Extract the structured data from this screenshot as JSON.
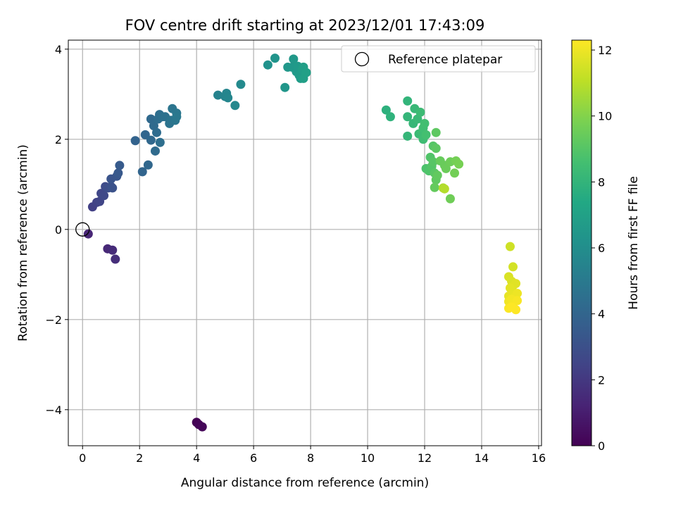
{
  "chart_data": {
    "type": "scatter",
    "title": "FOV centre drift starting at 2023/12/01 17:43:09",
    "xlabel": "Angular distance from reference (arcmin)",
    "ylabel": "Rotation from reference (arcmin)",
    "xlim": [
      -0.5,
      16.1
    ],
    "ylim": [
      -4.8,
      4.2
    ],
    "xticks": [
      0,
      2,
      4,
      6,
      8,
      10,
      12,
      14,
      16
    ],
    "yticks": [
      -4,
      -2,
      0,
      2,
      4
    ],
    "xtick_labels": [
      "0",
      "2",
      "4",
      "6",
      "8",
      "10",
      "12",
      "14",
      "16"
    ],
    "ytick_labels": [
      "−4",
      "−2",
      "0",
      "2",
      "4"
    ],
    "grid": true,
    "colormap": "viridis",
    "colorbar": {
      "label": "Hours from first FF file",
      "range": [
        0,
        12.3
      ],
      "ticks": [
        0,
        2,
        4,
        6,
        8,
        10,
        12
      ],
      "tick_labels": [
        "0",
        "2",
        "4",
        "6",
        "8",
        "10",
        "12"
      ]
    },
    "legend": {
      "label": "Reference platepar",
      "placement": "upper-right"
    },
    "reference_point": {
      "x": 0,
      "y": 0
    },
    "points": [
      {
        "x": 4.0,
        "y": -4.28,
        "c": 0.0
      },
      {
        "x": 4.08,
        "y": -4.33,
        "c": 0.1
      },
      {
        "x": 4.2,
        "y": -4.38,
        "c": 0.2
      },
      {
        "x": 0.2,
        "y": -0.1,
        "c": 1.3
      },
      {
        "x": 0.88,
        "y": -0.43,
        "c": 1.4
      },
      {
        "x": 1.05,
        "y": -0.46,
        "c": 1.5
      },
      {
        "x": 1.15,
        "y": -0.66,
        "c": 1.6
      },
      {
        "x": 0.35,
        "y": 0.5,
        "c": 2.3
      },
      {
        "x": 0.5,
        "y": 0.6,
        "c": 2.4
      },
      {
        "x": 0.6,
        "y": 0.62,
        "c": 2.5
      },
      {
        "x": 0.65,
        "y": 0.8,
        "c": 2.6
      },
      {
        "x": 0.75,
        "y": 0.75,
        "c": 2.7
      },
      {
        "x": 0.8,
        "y": 0.95,
        "c": 2.8
      },
      {
        "x": 0.9,
        "y": 0.92,
        "c": 2.9
      },
      {
        "x": 1.0,
        "y": 0.95,
        "c": 3.0
      },
      {
        "x": 1.05,
        "y": 0.92,
        "c": 3.1
      },
      {
        "x": 1.0,
        "y": 1.12,
        "c": 3.2
      },
      {
        "x": 1.2,
        "y": 1.18,
        "c": 3.3
      },
      {
        "x": 1.25,
        "y": 1.25,
        "c": 3.4
      },
      {
        "x": 1.3,
        "y": 1.42,
        "c": 3.5
      },
      {
        "x": 1.85,
        "y": 1.97,
        "c": 3.9
      },
      {
        "x": 2.1,
        "y": 1.28,
        "c": 4.0
      },
      {
        "x": 2.2,
        "y": 2.1,
        "c": 4.05
      },
      {
        "x": 2.3,
        "y": 1.43,
        "c": 4.1
      },
      {
        "x": 2.4,
        "y": 1.98,
        "c": 4.15
      },
      {
        "x": 2.4,
        "y": 2.45,
        "c": 4.2
      },
      {
        "x": 2.5,
        "y": 2.3,
        "c": 4.25
      },
      {
        "x": 2.55,
        "y": 1.74,
        "c": 4.3
      },
      {
        "x": 2.6,
        "y": 2.15,
        "c": 4.35
      },
      {
        "x": 2.65,
        "y": 2.45,
        "c": 4.4
      },
      {
        "x": 2.7,
        "y": 2.55,
        "c": 4.45
      },
      {
        "x": 2.72,
        "y": 1.93,
        "c": 4.5
      },
      {
        "x": 2.8,
        "y": 2.5,
        "c": 4.55
      },
      {
        "x": 2.9,
        "y": 2.5,
        "c": 4.6
      },
      {
        "x": 3.05,
        "y": 2.35,
        "c": 4.65
      },
      {
        "x": 3.1,
        "y": 2.42,
        "c": 4.7
      },
      {
        "x": 3.15,
        "y": 2.68,
        "c": 4.75
      },
      {
        "x": 3.25,
        "y": 2.42,
        "c": 4.8
      },
      {
        "x": 3.3,
        "y": 2.58,
        "c": 4.85
      },
      {
        "x": 3.3,
        "y": 2.5,
        "c": 4.9
      },
      {
        "x": 4.75,
        "y": 2.98,
        "c": 5.4
      },
      {
        "x": 5.0,
        "y": 2.95,
        "c": 5.5
      },
      {
        "x": 5.05,
        "y": 3.02,
        "c": 5.55
      },
      {
        "x": 5.1,
        "y": 2.92,
        "c": 5.6
      },
      {
        "x": 5.35,
        "y": 2.75,
        "c": 5.7
      },
      {
        "x": 5.55,
        "y": 3.22,
        "c": 5.8
      },
      {
        "x": 6.5,
        "y": 3.65,
        "c": 6.2
      },
      {
        "x": 6.75,
        "y": 3.8,
        "c": 6.3
      },
      {
        "x": 7.1,
        "y": 3.15,
        "c": 6.4
      },
      {
        "x": 7.2,
        "y": 3.6,
        "c": 6.45
      },
      {
        "x": 7.35,
        "y": 3.6,
        "c": 6.5
      },
      {
        "x": 7.4,
        "y": 3.78,
        "c": 6.55
      },
      {
        "x": 7.5,
        "y": 3.5,
        "c": 6.6
      },
      {
        "x": 7.55,
        "y": 3.62,
        "c": 6.65
      },
      {
        "x": 7.6,
        "y": 3.42,
        "c": 6.7
      },
      {
        "x": 7.65,
        "y": 3.35,
        "c": 6.75
      },
      {
        "x": 7.7,
        "y": 3.55,
        "c": 6.8
      },
      {
        "x": 7.75,
        "y": 3.6,
        "c": 6.85
      },
      {
        "x": 7.75,
        "y": 3.35,
        "c": 6.9
      },
      {
        "x": 7.85,
        "y": 3.48,
        "c": 6.95
      },
      {
        "x": 10.65,
        "y": 2.65,
        "c": 7.8
      },
      {
        "x": 10.8,
        "y": 2.5,
        "c": 7.9
      },
      {
        "x": 11.4,
        "y": 2.85,
        "c": 8.0
      },
      {
        "x": 11.4,
        "y": 2.5,
        "c": 8.05
      },
      {
        "x": 11.4,
        "y": 2.07,
        "c": 8.1
      },
      {
        "x": 11.6,
        "y": 2.35,
        "c": 8.15
      },
      {
        "x": 11.65,
        "y": 2.68,
        "c": 8.2
      },
      {
        "x": 11.75,
        "y": 2.45,
        "c": 8.25
      },
      {
        "x": 11.8,
        "y": 2.12,
        "c": 8.3
      },
      {
        "x": 11.85,
        "y": 2.6,
        "c": 8.35
      },
      {
        "x": 11.9,
        "y": 2.15,
        "c": 8.4
      },
      {
        "x": 11.95,
        "y": 2.0,
        "c": 8.45
      },
      {
        "x": 11.95,
        "y": 2.25,
        "c": 8.5
      },
      {
        "x": 12.0,
        "y": 2.35,
        "c": 8.55
      },
      {
        "x": 12.05,
        "y": 2.1,
        "c": 8.6
      },
      {
        "x": 12.05,
        "y": 1.35,
        "c": 8.8
      },
      {
        "x": 12.15,
        "y": 1.3,
        "c": 8.85
      },
      {
        "x": 12.2,
        "y": 1.6,
        "c": 8.9
      },
      {
        "x": 12.25,
        "y": 1.4,
        "c": 8.95
      },
      {
        "x": 12.3,
        "y": 1.85,
        "c": 9.0
      },
      {
        "x": 12.3,
        "y": 1.5,
        "c": 9.05
      },
      {
        "x": 12.35,
        "y": 1.25,
        "c": 9.1
      },
      {
        "x": 12.4,
        "y": 1.8,
        "c": 9.15
      },
      {
        "x": 12.4,
        "y": 2.15,
        "c": 9.2
      },
      {
        "x": 12.4,
        "y": 1.1,
        "c": 9.25
      },
      {
        "x": 12.45,
        "y": 1.2,
        "c": 9.3
      },
      {
        "x": 12.35,
        "y": 0.93,
        "c": 9.35
      },
      {
        "x": 12.55,
        "y": 1.52,
        "c": 9.4
      },
      {
        "x": 12.7,
        "y": 1.42,
        "c": 9.45
      },
      {
        "x": 12.75,
        "y": 1.35,
        "c": 9.5
      },
      {
        "x": 12.9,
        "y": 1.5,
        "c": 9.55
      },
      {
        "x": 12.9,
        "y": 0.68,
        "c": 9.6
      },
      {
        "x": 13.05,
        "y": 1.25,
        "c": 9.65
      },
      {
        "x": 13.1,
        "y": 1.52,
        "c": 9.7
      },
      {
        "x": 13.2,
        "y": 1.45,
        "c": 9.75
      },
      {
        "x": 12.65,
        "y": 0.92,
        "c": 10.8
      },
      {
        "x": 12.7,
        "y": 0.9,
        "c": 10.9
      },
      {
        "x": 15.0,
        "y": -0.38,
        "c": 11.4
      },
      {
        "x": 15.1,
        "y": -0.83,
        "c": 11.5
      },
      {
        "x": 14.95,
        "y": -1.05,
        "c": 11.6
      },
      {
        "x": 15.05,
        "y": -1.15,
        "c": 11.65
      },
      {
        "x": 15.1,
        "y": -1.25,
        "c": 11.7
      },
      {
        "x": 15.2,
        "y": -1.2,
        "c": 11.75
      },
      {
        "x": 15.0,
        "y": -1.3,
        "c": 11.8
      },
      {
        "x": 14.95,
        "y": -1.48,
        "c": 11.85
      },
      {
        "x": 15.05,
        "y": -1.45,
        "c": 11.9
      },
      {
        "x": 15.15,
        "y": -1.5,
        "c": 11.95
      },
      {
        "x": 15.25,
        "y": -1.42,
        "c": 12.0
      },
      {
        "x": 14.95,
        "y": -1.6,
        "c": 12.05
      },
      {
        "x": 15.05,
        "y": -1.55,
        "c": 12.1
      },
      {
        "x": 15.1,
        "y": -1.65,
        "c": 12.15
      },
      {
        "x": 15.25,
        "y": -1.58,
        "c": 12.2
      },
      {
        "x": 14.95,
        "y": -1.75,
        "c": 12.25
      },
      {
        "x": 15.2,
        "y": -1.78,
        "c": 12.3
      },
      {
        "x": 15.05,
        "y": -1.72,
        "c": 12.3
      }
    ]
  }
}
